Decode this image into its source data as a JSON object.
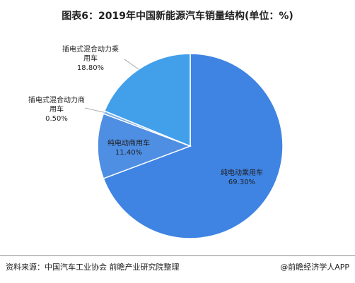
{
  "title": "图表6：2019年中国新能源汽车销量结构(单位：%)",
  "footer": {
    "source": "资料来源：中国汽车工业协会 前瞻产业研究院整理",
    "brand": "@前瞻经济学人APP"
  },
  "colors": {
    "slice_1": "#3f84e3",
    "slice_2": "#4f8fe3",
    "slice_3": "#78aee9",
    "slice_4": "#42a0ea",
    "stroke": "#ffffff",
    "inside_label": "#1f1f1f",
    "leader_line": "#9a9a9a"
  },
  "chart_data": {
    "type": "pie",
    "start_angle_deg": 0,
    "direction": "clockwise",
    "slices": [
      {
        "label_lines": [
          "纯电动乘用车"
        ],
        "value_label": "69.30%",
        "value": 69.3,
        "label_position": "inside"
      },
      {
        "label_lines": [
          "纯电动商用车"
        ],
        "value_label": "11.40%",
        "value": 11.4,
        "label_position": "inside"
      },
      {
        "label_lines": [
          "插电式混合动力商",
          "用车"
        ],
        "value_label": "0.50%",
        "value": 0.5,
        "label_position": "outside-left"
      },
      {
        "label_lines": [
          "插电式混合动力乘",
          "用车"
        ],
        "value_label": "18.80%",
        "value": 18.8,
        "label_position": "outside-left"
      }
    ]
  }
}
